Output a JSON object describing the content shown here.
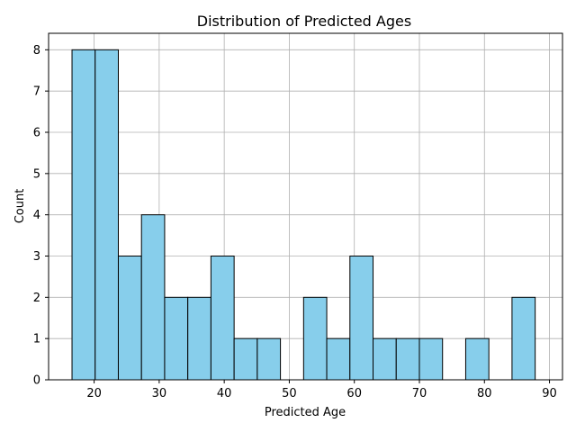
{
  "chart_data": {
    "type": "bar",
    "subtype": "histogram",
    "title": "Distribution of Predicted Ages",
    "xlabel": "Predicted Age",
    "ylabel": "Count",
    "xlim": [
      13,
      92
    ],
    "ylim": [
      0,
      8.4
    ],
    "xticks": [
      20,
      30,
      40,
      50,
      60,
      70,
      80,
      90
    ],
    "yticks": [
      0,
      1,
      2,
      3,
      4,
      5,
      6,
      7,
      8
    ],
    "bin_edges": [
      16.6,
      20.16,
      23.72,
      27.28,
      30.84,
      34.4,
      37.96,
      41.52,
      45.08,
      48.64,
      52.2,
      55.76,
      59.32,
      62.88,
      66.44,
      70.0,
      73.56,
      77.12,
      80.68,
      84.24,
      87.8
    ],
    "counts": [
      8,
      8,
      3,
      4,
      2,
      2,
      3,
      1,
      1,
      0,
      2,
      1,
      3,
      1,
      1,
      1,
      0,
      1,
      0,
      2
    ],
    "grid": true,
    "colors": {
      "bar_fill": "#87CEEB",
      "bar_edge": "#000000",
      "grid": "#b0b0b0"
    }
  }
}
